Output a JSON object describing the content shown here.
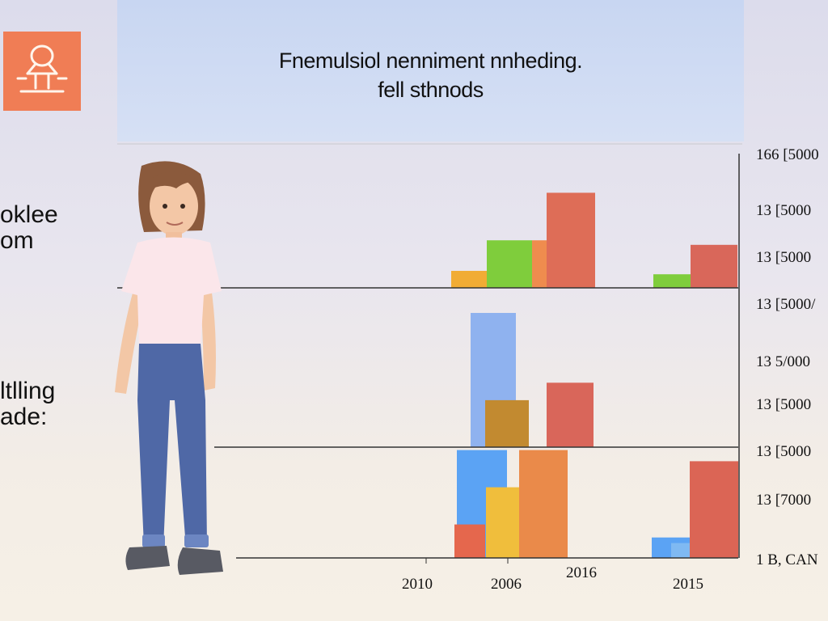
{
  "chart_data": {
    "type": "bar",
    "title": "Fnemulsiol nenniment nnheding.",
    "subtitle": "fell sthnods",
    "side_labels": [
      "oklee\nom",
      "ltlling\nade:"
    ],
    "y_tick_labels": [
      "166 [5000",
      "13 [5000",
      "13 [5000",
      "13 [5000/",
      "13 5/000",
      "13 [5000",
      "13 [5000",
      "13 [7000",
      "1 B, CAN"
    ],
    "x_tick_labels": [
      "2010",
      "2006",
      "2016",
      "2015"
    ],
    "panels": [
      {
        "bars": [
          {
            "category": "2006",
            "value": 15,
            "color": "#f1ac35"
          },
          {
            "category": "2006",
            "value": 42,
            "color": "#7fcd3c"
          },
          {
            "category": "2006",
            "value": 42,
            "color": "#ef8c4e"
          },
          {
            "category": "2016",
            "value": 84,
            "color": "#de6d57"
          },
          {
            "category": "2015",
            "value": 12,
            "color": "#7fcd3c"
          },
          {
            "category": "2015",
            "value": 38,
            "color": "#d9675a"
          }
        ]
      },
      {
        "bars": [
          {
            "category": "2006",
            "value": 100,
            "color": "#8fb2ef"
          },
          {
            "category": "2006",
            "value": 35,
            "color": "#c28a30"
          },
          {
            "category": "2016",
            "value": 48,
            "color": "#d9665a"
          }
        ]
      },
      {
        "bars": [
          {
            "category": "2006",
            "value": 58,
            "color": "#5ba3f4"
          },
          {
            "category": "2006",
            "value": 18,
            "color": "#e5674d"
          },
          {
            "category": "2006",
            "value": 38,
            "color": "#f0be3c"
          },
          {
            "category": "2016",
            "value": 58,
            "color": "#ea8a4a"
          },
          {
            "category": "2015",
            "value": 11,
            "color": "#5ba3f4"
          },
          {
            "category": "2015",
            "value": 8,
            "color": "#7fb9f2"
          },
          {
            "category": "2015",
            "value": 52,
            "color": "#db6555"
          }
        ]
      }
    ]
  },
  "colors": {
    "logo": "#f07d55",
    "axis": "#333333"
  },
  "icons": {
    "logo": "figure-icon",
    "illustration": "woman-illustration"
  }
}
